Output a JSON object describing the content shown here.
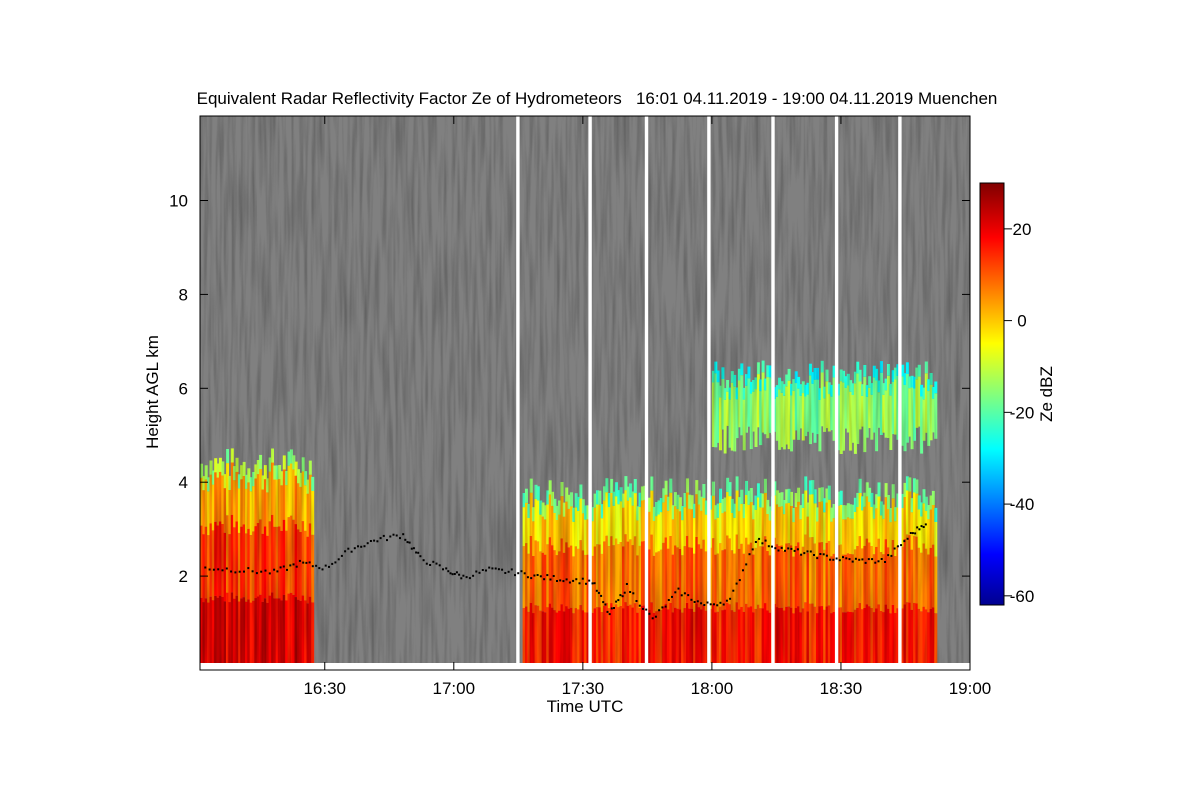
{
  "chart_data": {
    "type": "heatmap",
    "title": "Equivalent Radar Reflectivity Factor Ze of Hydrometeors   16:01 04.11.2019 - 19:00 04.11.2019 Muenchen",
    "xlabel": "Time UTC",
    "ylabel": "Height AGL km",
    "colorbar_label": "Ze dBZ",
    "x_ticks": [
      "16:30",
      "17:00",
      "17:30",
      "18:00",
      "18:30",
      "19:00"
    ],
    "x_tick_minutes": [
      30,
      60,
      90,
      120,
      150,
      180
    ],
    "x_range_minutes": [
      1,
      180
    ],
    "y_ticks": [
      "2",
      "4",
      "6",
      "8",
      "10"
    ],
    "y_tick_values": [
      2,
      4,
      6,
      8,
      10
    ],
    "y_range_km": [
      0,
      11.8
    ],
    "colorbar_ticks": [
      "20",
      "0",
      "-20",
      "-40",
      "-60"
    ],
    "colorbar_tick_values": [
      20,
      0,
      -20,
      -40,
      -60
    ],
    "colorbar_range": [
      -62,
      30
    ],
    "background_color": "#808080",
    "colormap": [
      "#00008f",
      "#0000ff",
      "#00ffff",
      "#ffff00",
      "#ff0000",
      "#800000"
    ],
    "data_gaps_minutes": [
      [
        74.5,
        75.3
      ],
      [
        91.3,
        92.1
      ],
      [
        104.4,
        105.2
      ],
      [
        118.9,
        119.7
      ],
      [
        133.8,
        134.6
      ],
      [
        148.6,
        149.4
      ],
      [
        163.3,
        164.1
      ]
    ],
    "echo_regions": [
      {
        "t_start": 1,
        "t_end": 27,
        "top_km": 4.4,
        "peak_dbz": 25
      },
      {
        "t_start": 76,
        "t_end": 172,
        "top_km": 3.8,
        "peak_dbz": 20
      },
      {
        "t_start": 120,
        "t_end": 172,
        "top_km": 6.3,
        "bottom_km": 4.9,
        "peak_dbz": -5
      }
    ],
    "cloud_base_km": [
      {
        "t": 2,
        "h": 2.2
      },
      {
        "t": 10,
        "h": 2.15
      },
      {
        "t": 18,
        "h": 2.1
      },
      {
        "t": 24,
        "h": 2.3
      },
      {
        "t": 30,
        "h": 2.2
      },
      {
        "t": 36,
        "h": 2.6
      },
      {
        "t": 42,
        "h": 2.8
      },
      {
        "t": 48,
        "h": 2.9
      },
      {
        "t": 52,
        "h": 2.4
      },
      {
        "t": 58,
        "h": 2.15
      },
      {
        "t": 62,
        "h": 2.0
      },
      {
        "t": 68,
        "h": 2.15
      },
      {
        "t": 74,
        "h": 2.1
      },
      {
        "t": 80,
        "h": 2.0
      },
      {
        "t": 86,
        "h": 1.95
      },
      {
        "t": 92,
        "h": 1.9
      },
      {
        "t": 96,
        "h": 1.2
      },
      {
        "t": 100,
        "h": 1.8
      },
      {
        "t": 106,
        "h": 1.1
      },
      {
        "t": 112,
        "h": 1.7
      },
      {
        "t": 118,
        "h": 1.4
      },
      {
        "t": 124,
        "h": 1.5
      },
      {
        "t": 130,
        "h": 2.8
      },
      {
        "t": 136,
        "h": 2.6
      },
      {
        "t": 142,
        "h": 2.5
      },
      {
        "t": 148,
        "h": 2.4
      },
      {
        "t": 154,
        "h": 2.35
      },
      {
        "t": 160,
        "h": 2.35
      },
      {
        "t": 166,
        "h": 2.9
      },
      {
        "t": 170,
        "h": 3.2
      }
    ]
  }
}
